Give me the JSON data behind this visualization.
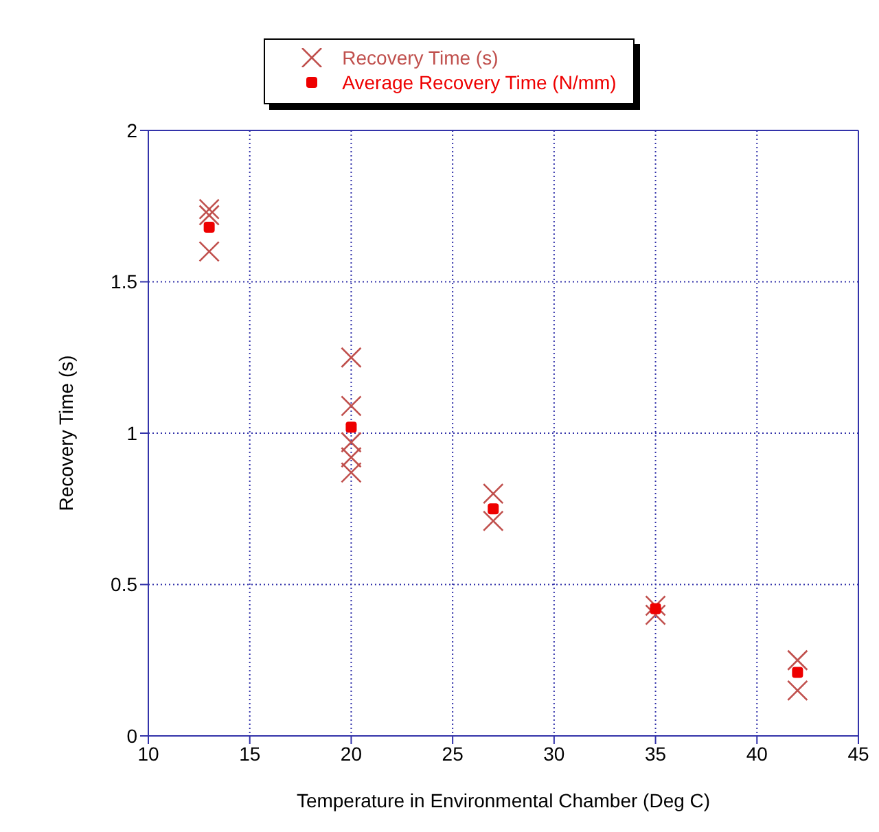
{
  "chart_data": {
    "type": "scatter",
    "xlabel": "Temperature in Environmental Chamber (Deg C)",
    "ylabel": "Recovery Time (s)",
    "xlim": [
      10,
      45
    ],
    "xticks": [
      10,
      15,
      20,
      25,
      30,
      35,
      40,
      45
    ],
    "ylim": [
      0,
      2
    ],
    "yticks": [
      0,
      0.5,
      1,
      1.5,
      2
    ],
    "grid": true,
    "legend": "top",
    "series": [
      {
        "name": "Recovery Time (s)",
        "color": "#c0504d",
        "marker": "cross",
        "x": [
          13,
          13,
          13,
          20,
          20,
          20,
          20,
          20,
          27,
          27,
          35,
          35,
          42,
          42
        ],
        "values": [
          1.74,
          1.72,
          1.6,
          1.25,
          1.09,
          0.97,
          0.92,
          0.87,
          0.8,
          0.71,
          0.43,
          0.4,
          0.25,
          0.15
        ]
      },
      {
        "name": "Average Recovery Time (N/mm)",
        "color": "#ee0000",
        "marker": "square",
        "x": [
          13,
          20,
          27,
          35,
          42
        ],
        "values": [
          1.68,
          1.02,
          0.75,
          0.42,
          0.21
        ]
      }
    ]
  }
}
